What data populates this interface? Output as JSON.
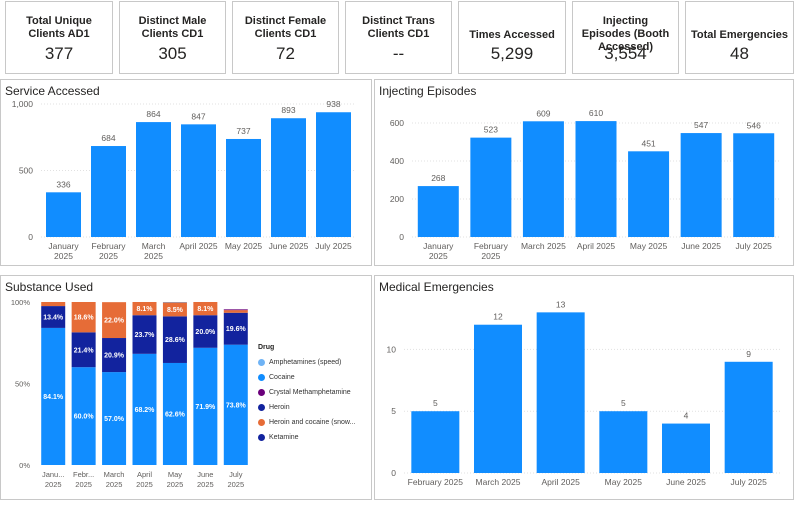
{
  "kpis": [
    {
      "title": "Total Unique Clients AD1",
      "value": "377"
    },
    {
      "title": "Distinct Male Clients CD1",
      "value": "305"
    },
    {
      "title": "Distinct Female Clients CD1",
      "value": "72"
    },
    {
      "title": "Distinct Trans Clients CD1",
      "value": "--"
    },
    {
      "title": "Times Accessed",
      "value": "5,299"
    },
    {
      "title": "Injecting Episodes (Booth Accessed)",
      "value": "3,554"
    },
    {
      "title": "Total Emergencies",
      "value": "48"
    }
  ],
  "panels": {
    "service": {
      "title": "Service Accessed"
    },
    "injecting": {
      "title": "Injecting Episodes"
    },
    "substance": {
      "title": "Substance Used"
    },
    "medical": {
      "title": "Medical Emergencies"
    }
  },
  "colors": {
    "blue": "#118dff",
    "navy": "#12239e",
    "orange": "#e66c37",
    "light_blue": "#6fb3f5",
    "purple": "#6b007b",
    "text": "#605e5c"
  },
  "legend": {
    "title": "Drug",
    "items": [
      {
        "label": "Amphetamines (speed)",
        "color": "#6fb3f5"
      },
      {
        "label": "Cocaine",
        "color": "#118dff"
      },
      {
        "label": "Crystal Methamphetamine",
        "color": "#6b007b"
      },
      {
        "label": "Heroin",
        "color": "#12239e"
      },
      {
        "label": "Heroin and cocaine (snow...",
        "color": "#e66c37"
      },
      {
        "label": "Ketamine",
        "color": "#12239e"
      }
    ]
  },
  "chart_data": [
    {
      "id": "service",
      "type": "bar",
      "title": "Service Accessed",
      "categories": [
        [
          "January",
          "2025"
        ],
        [
          "February",
          "2025"
        ],
        [
          "March",
          "2025"
        ],
        [
          "April 2025"
        ],
        [
          "May 2025"
        ],
        [
          "June 2025"
        ],
        [
          "July 2025"
        ]
      ],
      "values": [
        336,
        684,
        864,
        847,
        737,
        893,
        938
      ],
      "labels": [
        "336",
        "684",
        "864",
        "847",
        "737",
        "893",
        "938"
      ],
      "ylim": [
        0,
        1000
      ],
      "yticks": [
        0,
        500,
        1000
      ],
      "ytick_labels": [
        "0",
        "500",
        "1,000"
      ],
      "grid": true
    },
    {
      "id": "injecting",
      "type": "bar",
      "title": "Injecting Episodes",
      "categories": [
        [
          "January",
          "2025"
        ],
        [
          "February",
          "2025"
        ],
        [
          "March 2025"
        ],
        [
          "April 2025"
        ],
        [
          "May 2025"
        ],
        [
          "June 2025"
        ],
        [
          "July 2025"
        ]
      ],
      "values": [
        268,
        523,
        609,
        610,
        451,
        547,
        546
      ],
      "labels": [
        "268",
        "523",
        "609",
        "610",
        "451",
        "547",
        "546"
      ],
      "ylim": [
        0,
        700
      ],
      "yticks": [
        0,
        200,
        400,
        600
      ],
      "ytick_labels": [
        "0",
        "200",
        "400",
        "600"
      ],
      "grid": true
    },
    {
      "id": "substance",
      "type": "bar",
      "stacked": true,
      "percent": true,
      "title": "Substance Used",
      "categories": [
        [
          "Janu...",
          "2025"
        ],
        [
          "Febr...",
          "2025"
        ],
        [
          "March",
          "2025"
        ],
        [
          "April",
          "2025"
        ],
        [
          "May",
          "2025"
        ],
        [
          "June",
          "2025"
        ],
        [
          "July",
          "2025"
        ]
      ],
      "ylim": [
        0,
        100
      ],
      "yticks": [
        0,
        50,
        100
      ],
      "ytick_labels": [
        "0%",
        "50%",
        "100%"
      ],
      "legend_position": "right",
      "series": [
        {
          "name": "Cocaine",
          "color": "#118dff",
          "values": [
            84.1,
            60.0,
            57.0,
            68.2,
            62.6,
            71.9,
            73.8
          ],
          "labels": [
            "84.1%",
            "60.0%",
            "57.0%",
            "68.2%",
            "62.6%",
            "71.9%",
            "73.8%"
          ]
        },
        {
          "name": "Heroin",
          "color": "#12239e",
          "values": [
            13.4,
            21.4,
            20.9,
            23.7,
            28.6,
            20.0,
            19.6
          ],
          "labels": [
            "13.4%",
            "21.4%",
            "20.9%",
            "23.7%",
            "28.6%",
            "20.0%",
            "19.6%"
          ]
        },
        {
          "name": "Heroin and cocaine (snow...",
          "color": "#e66c37",
          "values": [
            2.5,
            18.6,
            22.0,
            8.1,
            8.5,
            8.1,
            1.6
          ],
          "labels": [
            "",
            "18.6%",
            "22.0%",
            "8.1%",
            "8.5%",
            "8.1%",
            ""
          ]
        },
        {
          "name": "Crystal Methamphetamine",
          "color": "#6b007b",
          "values": [
            0,
            0,
            0,
            0,
            0,
            0,
            0.5
          ],
          "labels": [
            "",
            "",
            "",
            "",
            "",
            "",
            ""
          ]
        },
        {
          "name": "Amphetamines (speed)",
          "color": "#6fb3f5",
          "values": [
            0,
            0,
            0,
            0,
            0.3,
            0,
            0
          ],
          "labels": [
            "",
            "",
            "",
            "",
            "",
            "",
            ""
          ]
        }
      ]
    },
    {
      "id": "medical",
      "type": "bar",
      "title": "Medical Emergencies",
      "categories": [
        [
          "February 2025"
        ],
        [
          "March 2025"
        ],
        [
          "April 2025"
        ],
        [
          "May 2025"
        ],
        [
          "June 2025"
        ],
        [
          "July 2025"
        ]
      ],
      "values": [
        5,
        12,
        13,
        5,
        4,
        9
      ],
      "labels": [
        "5",
        "12",
        "13",
        "5",
        "4",
        "9"
      ],
      "ylim": [
        0,
        14
      ],
      "yticks": [
        0,
        5,
        10
      ],
      "ytick_labels": [
        "0",
        "5",
        "10"
      ],
      "grid": true
    }
  ]
}
